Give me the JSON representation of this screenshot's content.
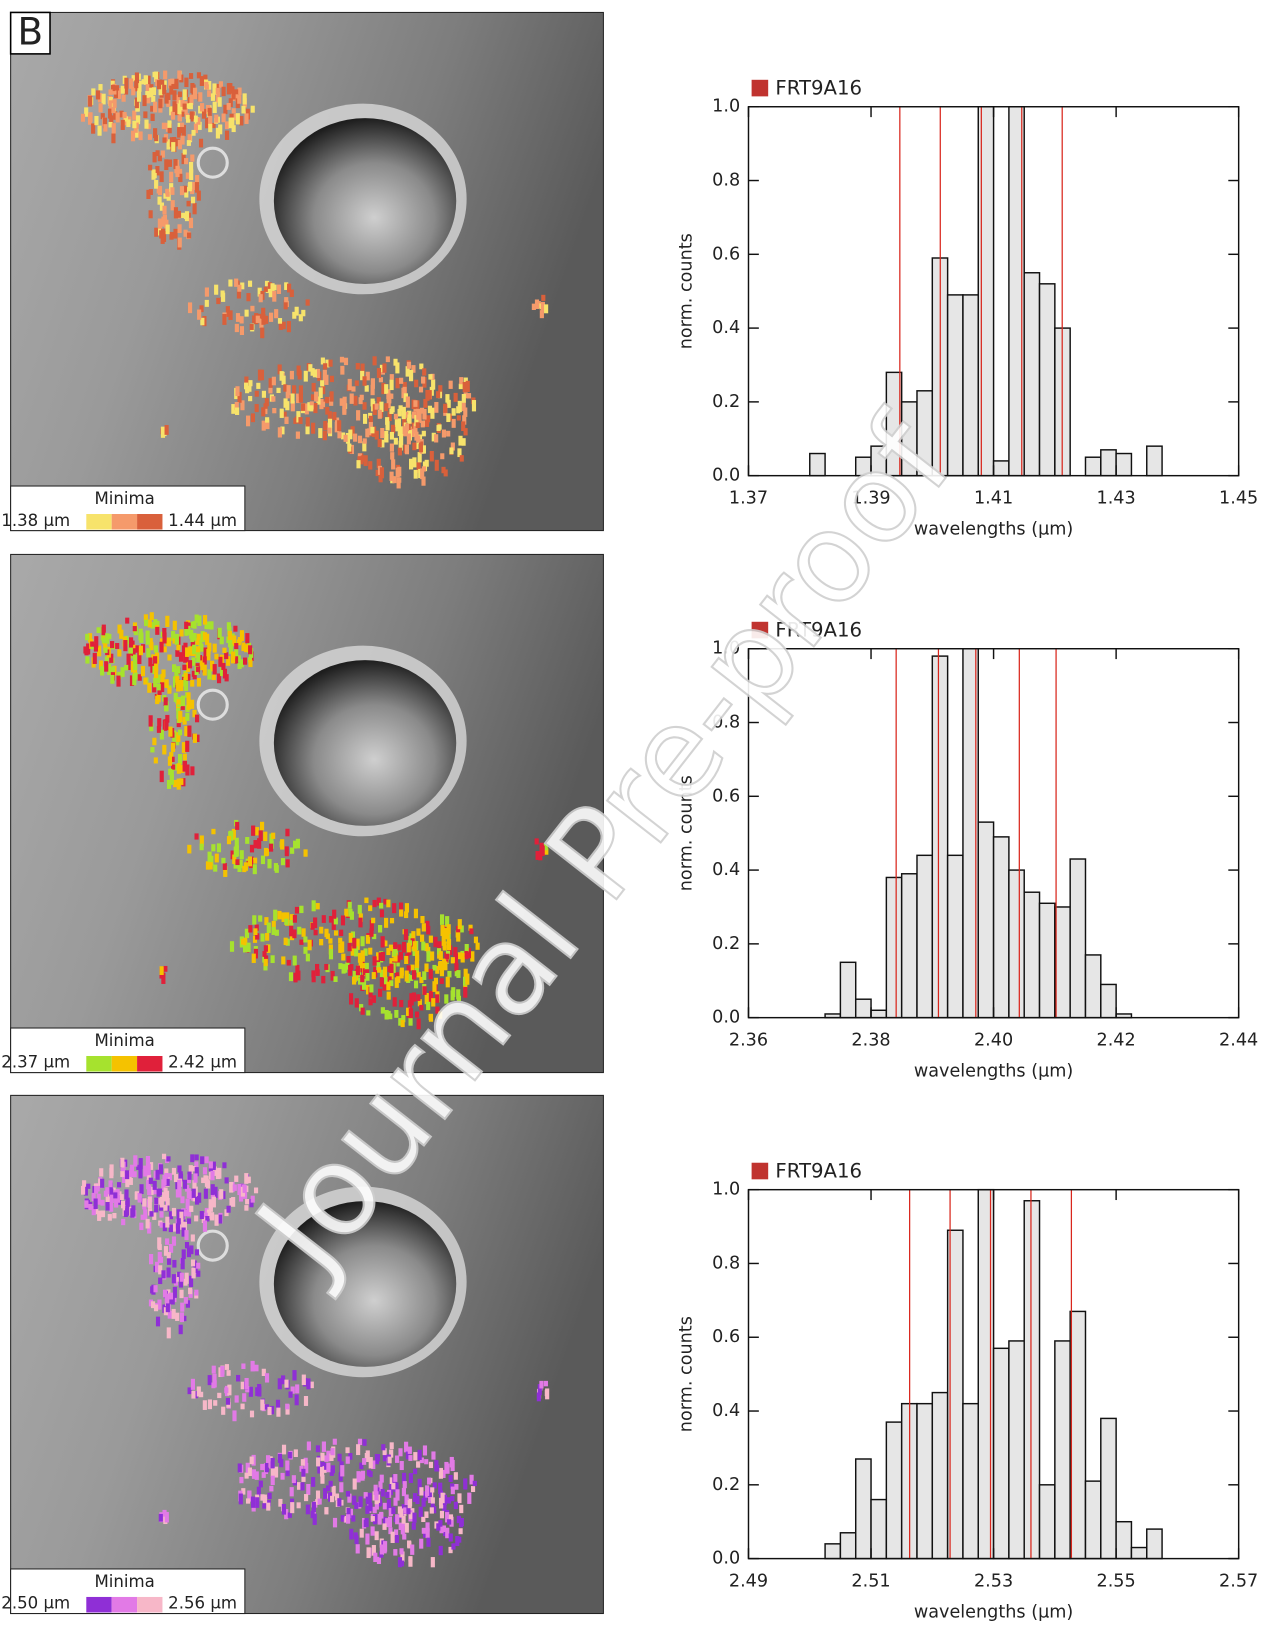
{
  "panel_label": "B",
  "watermark": "Journal Pre-proof",
  "maps": [
    {
      "legend_title": "Minima",
      "min_label": "1.38 µm",
      "max_label": "1.44 µm",
      "colors": [
        "#f7e36b",
        "#f59a6b",
        "#d9603b"
      ]
    },
    {
      "legend_title": "Minima",
      "min_label": "2.37 µm",
      "max_label": "2.42 µm",
      "colors": [
        "#a6e22e",
        "#f5c200",
        "#e0203a"
      ]
    },
    {
      "legend_title": "Minima",
      "min_label": "2.50 µm",
      "max_label": "2.56 µm",
      "colors": [
        "#8f2fd6",
        "#e27ae6",
        "#f7b7c8"
      ]
    }
  ],
  "chart_data": [
    {
      "type": "histogram",
      "legend": "FRT9A16",
      "legend_color": "#c0332f",
      "xlabel": "wavelengths (µm)",
      "ylabel": "norm. counts",
      "fill": "#e6e6e6",
      "line_color": "#d9261c",
      "bins": [
        1.38,
        1.3825,
        1.385,
        1.3875,
        1.39,
        1.3925,
        1.395,
        1.3975,
        1.4,
        1.4025,
        1.405,
        1.4075,
        1.41,
        1.4125,
        1.415,
        1.4175,
        1.42,
        1.4225,
        1.425,
        1.4275,
        1.43,
        1.4325,
        1.435,
        1.4375
      ],
      "values": [
        0.06,
        0.0,
        0.0,
        0.05,
        0.08,
        0.28,
        0.2,
        0.23,
        0.59,
        0.49,
        0.49,
        1.0,
        0.04,
        1.0,
        0.55,
        0.52,
        0.4,
        0.0,
        0.05,
        0.07,
        0.06,
        0.0,
        0.08
      ],
      "vlines": [
        1.3947,
        1.4013,
        1.408,
        1.4146,
        1.4212
      ],
      "xlim": [
        1.37,
        1.45
      ],
      "xticks": [
        1.37,
        1.39,
        1.41,
        1.43,
        1.45
      ],
      "ylim": [
        0,
        1
      ],
      "yticks": [
        {
          "value": 0,
          "label": "0.0"
        },
        {
          "value": 0.2,
          "label": "0.2"
        },
        {
          "value": 0.4,
          "label": "0.4"
        },
        {
          "value": 0.6,
          "label": "0.6"
        },
        {
          "value": 0.8,
          "label": "0.8"
        },
        {
          "value": 1,
          "label": "1.0"
        }
      ]
    },
    {
      "type": "histogram",
      "legend": "FRT9A16",
      "legend_color": "#c0332f",
      "xlabel": "wavelengths (µm)",
      "ylabel": "norm. counts",
      "fill": "#e6e6e6",
      "line_color": "#d9261c",
      "bins": [
        2.3725,
        2.375,
        2.3775,
        2.38,
        2.3825,
        2.385,
        2.3875,
        2.39,
        2.3925,
        2.395,
        2.3975,
        2.4,
        2.4025,
        2.405,
        2.4075,
        2.41,
        2.4125,
        2.415,
        2.4175,
        2.42,
        2.4225
      ],
      "values": [
        0.01,
        0.15,
        0.05,
        0.02,
        0.38,
        0.39,
        0.44,
        0.98,
        0.44,
        1.0,
        0.53,
        0.49,
        0.4,
        0.34,
        0.31,
        0.3,
        0.43,
        0.17,
        0.09,
        0.01
      ],
      "vlines": [
        2.3841,
        2.391,
        2.3971,
        2.4042,
        2.4102
      ],
      "xlim": [
        2.36,
        2.44
      ],
      "xticks": [
        2.36,
        2.38,
        {
          "value": 2.4,
          "label": "2.40"
        },
        2.42,
        2.44
      ],
      "ylim": [
        0,
        1
      ],
      "yticks": [
        {
          "value": 0,
          "label": "0.0"
        },
        {
          "value": 0.2,
          "label": "0.2"
        },
        {
          "value": 0.4,
          "label": "0.4"
        },
        {
          "value": 0.6,
          "label": "0.6"
        },
        {
          "value": 0.8,
          "label": "0.8"
        },
        {
          "value": 1,
          "label": "1.0"
        }
      ]
    },
    {
      "type": "histogram",
      "legend": "FRT9A16",
      "legend_color": "#c0332f",
      "xlabel": "wavelengths (µm)",
      "ylabel": "norm. counts",
      "fill": "#e6e6e6",
      "line_color": "#d9261c",
      "bins": [
        2.5025,
        2.505,
        2.5075,
        2.51,
        2.5125,
        2.515,
        2.5175,
        2.52,
        2.5225,
        2.525,
        2.5275,
        2.53,
        2.5325,
        2.535,
        2.5375,
        2.54,
        2.5425,
        2.545,
        2.5475,
        2.55,
        2.5525,
        2.555,
        2.5575
      ],
      "values": [
        0.04,
        0.07,
        0.27,
        0.16,
        0.37,
        0.42,
        0.42,
        0.45,
        0.89,
        0.42,
        1.0,
        0.57,
        0.59,
        0.97,
        0.2,
        0.59,
        0.67,
        0.21,
        0.38,
        0.1,
        0.03,
        0.08
      ],
      "vlines": [
        2.5163,
        2.5229,
        2.5295,
        2.5361,
        2.5427
      ],
      "xlim": [
        2.49,
        2.57
      ],
      "xticks": [
        2.49,
        2.51,
        2.53,
        2.55,
        2.57
      ],
      "ylim": [
        0,
        1
      ],
      "yticks": [
        {
          "value": 0,
          "label": "0.0"
        },
        {
          "value": 0.2,
          "label": "0.2"
        },
        {
          "value": 0.4,
          "label": "0.4"
        },
        {
          "value": 0.6,
          "label": "0.6"
        },
        {
          "value": 0.8,
          "label": "0.8"
        },
        {
          "value": 1,
          "label": "1.0"
        }
      ]
    }
  ]
}
